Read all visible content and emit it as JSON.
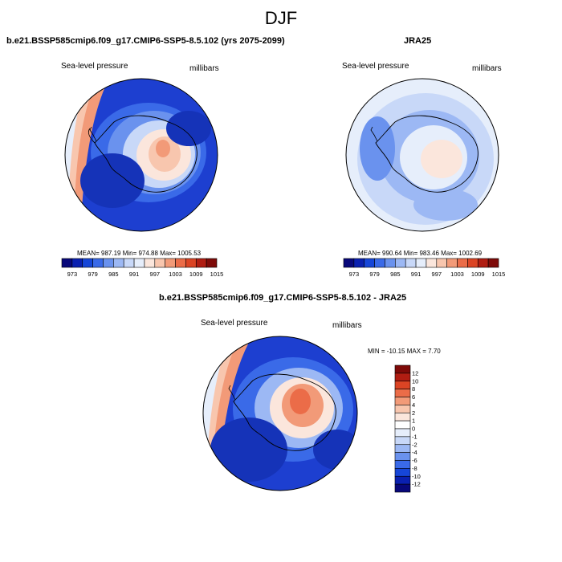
{
  "page_title": "DJF",
  "panels": [
    {
      "title": "b.e21.BSSP585cmip6.f09_g17.CMIP6-SSP5-8.5.102 (yrs 2075-2099)",
      "variable": "Sea-level pressure",
      "units": "millibars",
      "stats": "MEAN= 987.19  Min= 974.88  Max= 1005.53"
    },
    {
      "title": "JRA25",
      "variable": "Sea-level pressure",
      "units": "millibars",
      "stats": "MEAN= 990.64  Min= 983.46  Max= 1002.69"
    },
    {
      "title": "b.e21.BSSP585cmip6.f09_g17.CMIP6-SSP5-8.5.102 - JRA25",
      "variable": "Sea-level pressure",
      "units": "millibars",
      "stats": "MIN = -10.15 MAX =   7.70"
    }
  ],
  "abs_colorbar": {
    "labels": [
      "973",
      "979",
      "985",
      "991",
      "997",
      "1003",
      "1009",
      "1015"
    ],
    "colors": [
      "#08087a",
      "#0a20b0",
      "#1646d8",
      "#3a6ae8",
      "#6a92ee",
      "#9cb8f4",
      "#c8d8f8",
      "#e6eefb",
      "#fbe6dc",
      "#f8c6ae",
      "#f29a78",
      "#eb6c48",
      "#db4424",
      "#b01d12",
      "#7e0a08"
    ]
  },
  "diff_colorbar": {
    "labels": [
      "12",
      "10",
      "8",
      "6",
      "4",
      "2",
      "1",
      "0",
      "-1",
      "-2",
      "-4",
      "-6",
      "-8",
      "-10",
      "-12"
    ],
    "colors": [
      "#7e0a08",
      "#b01d12",
      "#db4424",
      "#eb6c48",
      "#f29a78",
      "#f8c6ae",
      "#fbe6dc",
      "#ffffff",
      "#e6eefb",
      "#c8d8f8",
      "#9cb8f4",
      "#6a92ee",
      "#3a6ae8",
      "#1646d8",
      "#0a20b0",
      "#08087a"
    ]
  },
  "field_colors": {
    "deep": "#1d3fd0",
    "mid": "#3a6ae8",
    "light": "#6a92ee",
    "pale": "#9cb8f4",
    "paler": "#c8d8f8",
    "palest": "#e6eefb",
    "warm1": "#fbe6dc",
    "warm2": "#f8c6ae",
    "warm3": "#f29a78",
    "warm4": "#eb6c48"
  }
}
